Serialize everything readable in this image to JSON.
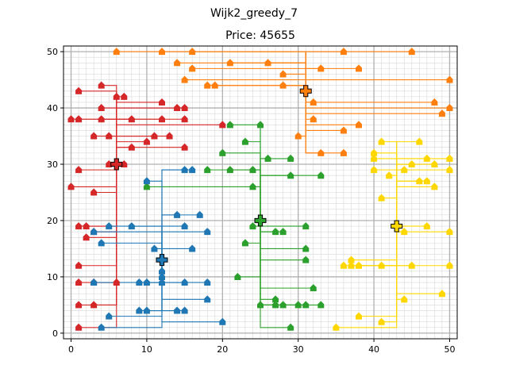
{
  "chart_data": {
    "type": "scatter",
    "suptitle": "Wijk2_greedy_7",
    "title": "Price: 45655",
    "xlim": [
      -1,
      51
    ],
    "ylim": [
      -1,
      51
    ],
    "xticks": [
      0,
      10,
      20,
      30,
      40,
      50
    ],
    "yticks": [
      0,
      10,
      20,
      30,
      40,
      50
    ],
    "grid": true,
    "clusters": [
      {
        "color": "#d62728",
        "center": [
          6,
          30
        ],
        "houses": [
          [
            1,
            43
          ],
          [
            4,
            44
          ],
          [
            6,
            42
          ],
          [
            7,
            42
          ],
          [
            4,
            40
          ],
          [
            12,
            41
          ],
          [
            14,
            40
          ],
          [
            15,
            40
          ],
          [
            0,
            38
          ],
          [
            1,
            38
          ],
          [
            4,
            38
          ],
          [
            8,
            38
          ],
          [
            12,
            38
          ],
          [
            15,
            38
          ],
          [
            20,
            37
          ],
          [
            3,
            35
          ],
          [
            5,
            35
          ],
          [
            11,
            35
          ],
          [
            13,
            35
          ],
          [
            10,
            34
          ],
          [
            8,
            33
          ],
          [
            15,
            33
          ],
          [
            1,
            29
          ],
          [
            5,
            30
          ],
          [
            7,
            30
          ],
          [
            0,
            26
          ],
          [
            3,
            25
          ],
          [
            1,
            19
          ],
          [
            2,
            19
          ],
          [
            3,
            18
          ],
          [
            2,
            17
          ],
          [
            1,
            12
          ],
          [
            1,
            9
          ],
          [
            3,
            9
          ],
          [
            6,
            9
          ],
          [
            1,
            5
          ],
          [
            3,
            5
          ],
          [
            1,
            1
          ]
        ]
      },
      {
        "color": "#ff7f0e",
        "center": [
          31,
          43
        ],
        "houses": [
          [
            6,
            50
          ],
          [
            12,
            50
          ],
          [
            16,
            50
          ],
          [
            36,
            50
          ],
          [
            45,
            50
          ],
          [
            14,
            48
          ],
          [
            21,
            48
          ],
          [
            26,
            48
          ],
          [
            33,
            47
          ],
          [
            38,
            47
          ],
          [
            16,
            47
          ],
          [
            15,
            45
          ],
          [
            18,
            44
          ],
          [
            19,
            44
          ],
          [
            28,
            46
          ],
          [
            28,
            44
          ],
          [
            50,
            45
          ],
          [
            32,
            41
          ],
          [
            32,
            38
          ],
          [
            36,
            36
          ],
          [
            38,
            37
          ],
          [
            48,
            41
          ],
          [
            50,
            40
          ],
          [
            49,
            39
          ],
          [
            30,
            35
          ],
          [
            33,
            32
          ],
          [
            36,
            32
          ]
        ]
      },
      {
        "color": "#2ca02c",
        "center": [
          25,
          20
        ],
        "houses": [
          [
            21,
            37
          ],
          [
            25,
            37
          ],
          [
            23,
            34
          ],
          [
            20,
            32
          ],
          [
            26,
            31
          ],
          [
            29,
            31
          ],
          [
            21,
            29
          ],
          [
            24,
            29
          ],
          [
            29,
            28
          ],
          [
            33,
            28
          ],
          [
            18,
            29
          ],
          [
            10,
            26
          ],
          [
            24,
            26
          ],
          [
            24,
            19
          ],
          [
            27,
            18
          ],
          [
            28,
            18
          ],
          [
            31,
            19
          ],
          [
            31,
            15
          ],
          [
            31,
            13
          ],
          [
            23,
            16
          ],
          [
            22,
            10
          ],
          [
            32,
            8
          ],
          [
            27,
            6
          ],
          [
            25,
            5
          ],
          [
            27,
            5
          ],
          [
            28,
            5
          ],
          [
            30,
            5
          ],
          [
            31,
            5
          ],
          [
            33,
            5
          ],
          [
            29,
            1
          ]
        ]
      },
      {
        "color": "#1f77b4",
        "center": [
          12,
          13
        ],
        "houses": [
          [
            15,
            29
          ],
          [
            16,
            29
          ],
          [
            10,
            27
          ],
          [
            14,
            21
          ],
          [
            17,
            21
          ],
          [
            5,
            19
          ],
          [
            8,
            19
          ],
          [
            15,
            19
          ],
          [
            18,
            18
          ],
          [
            3,
            18
          ],
          [
            4,
            16
          ],
          [
            11,
            15
          ],
          [
            16,
            15
          ],
          [
            12,
            11
          ],
          [
            12,
            10
          ],
          [
            12,
            9
          ],
          [
            3,
            9
          ],
          [
            9,
            9
          ],
          [
            10,
            9
          ],
          [
            15,
            9
          ],
          [
            18,
            9
          ],
          [
            18,
            6
          ],
          [
            9,
            4
          ],
          [
            10,
            4
          ],
          [
            14,
            4
          ],
          [
            15,
            4
          ],
          [
            5,
            3
          ],
          [
            20,
            2
          ],
          [
            4,
            1
          ]
        ]
      },
      {
        "color": "#ffd700",
        "center": [
          43,
          19
        ],
        "houses": [
          [
            41,
            34
          ],
          [
            46,
            34
          ],
          [
            40,
            32
          ],
          [
            40,
            31
          ],
          [
            47,
            31
          ],
          [
            50,
            31
          ],
          [
            40,
            29
          ],
          [
            42,
            28
          ],
          [
            44,
            29
          ],
          [
            45,
            30
          ],
          [
            48,
            30
          ],
          [
            50,
            29
          ],
          [
            46,
            27
          ],
          [
            47,
            27
          ],
          [
            48,
            26
          ],
          [
            41,
            24
          ],
          [
            47,
            19
          ],
          [
            44,
            18
          ],
          [
            50,
            18
          ],
          [
            37,
            13
          ],
          [
            36,
            12
          ],
          [
            37,
            12
          ],
          [
            38,
            12
          ],
          [
            41,
            12
          ],
          [
            45,
            12
          ],
          [
            50,
            12
          ],
          [
            49,
            7
          ],
          [
            44,
            6
          ],
          [
            35,
            1
          ],
          [
            38,
            3
          ],
          [
            41,
            2
          ]
        ]
      }
    ]
  }
}
